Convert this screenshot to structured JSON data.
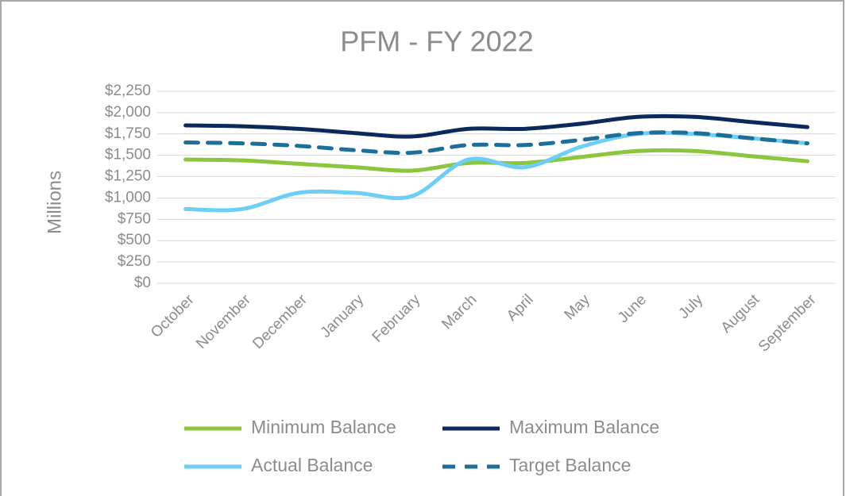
{
  "chart_data": {
    "type": "line",
    "title": "PFM - FY 2022",
    "y_label": "Millions",
    "categories": [
      "October",
      "November",
      "December",
      "January",
      "February",
      "March",
      "April",
      "May",
      "June",
      "July",
      "August",
      "September"
    ],
    "series": [
      {
        "name": "Minimum Balance",
        "color": "#8cc63f",
        "dash": false,
        "values": [
          1450,
          1440,
          1400,
          1360,
          1320,
          1410,
          1410,
          1480,
          1550,
          1550,
          1490,
          1430
        ]
      },
      {
        "name": "Maximum Balance",
        "color": "#0b2a5b",
        "dash": false,
        "values": [
          1850,
          1840,
          1810,
          1760,
          1720,
          1810,
          1810,
          1870,
          1950,
          1950,
          1890,
          1830
        ]
      },
      {
        "name": "Actual Balance",
        "color": "#6dcff6",
        "dash": false,
        "values": [
          870,
          870,
          1060,
          1060,
          1020,
          1450,
          1360,
          1600,
          1750,
          1750,
          1700,
          1640
        ]
      },
      {
        "name": "Target Balance",
        "color": "#1f6e99",
        "dash": true,
        "values": [
          1650,
          1640,
          1610,
          1560,
          1530,
          1620,
          1620,
          1680,
          1760,
          1760,
          1700,
          1640
        ]
      }
    ],
    "ylim": [
      0,
      2250
    ],
    "yticks": [
      {
        "value": 0,
        "label": "$0"
      },
      {
        "value": 250,
        "label": "$250"
      },
      {
        "value": 500,
        "label": "$500"
      },
      {
        "value": 750,
        "label": "$750"
      },
      {
        "value": 1000,
        "label": "$1,000"
      },
      {
        "value": 1250,
        "label": "$1,250"
      },
      {
        "value": 1500,
        "label": "$1,500"
      },
      {
        "value": 1750,
        "label": "$1,750"
      },
      {
        "value": 2000,
        "label": "$2,000"
      },
      {
        "value": 2250,
        "label": "$2,250"
      }
    ],
    "grid": true,
    "legend": "bottom"
  }
}
